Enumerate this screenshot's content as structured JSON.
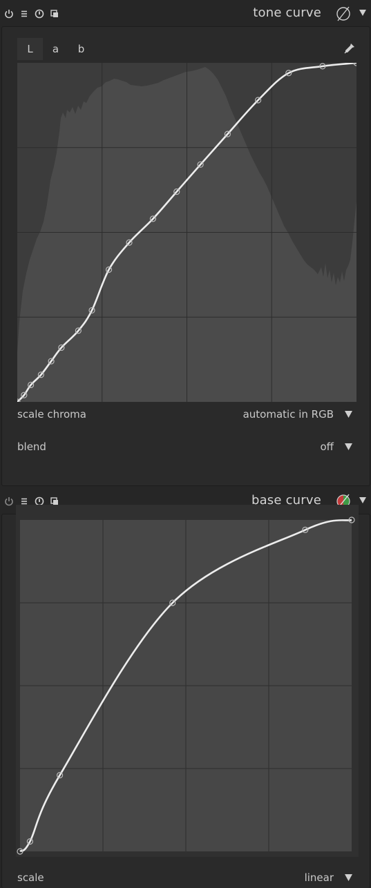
{
  "tone_curve": {
    "title": "tone curve",
    "header_icons": [
      "power-icon",
      "menu-icon",
      "reset-icon",
      "duplicate-icon"
    ],
    "preset_icon": "colorpicker-off-icon",
    "tabs": [
      {
        "label": "L",
        "active": true
      },
      {
        "label": "a",
        "active": false
      },
      {
        "label": "b",
        "active": false
      }
    ],
    "picker_icon": "eyedropper-icon",
    "scale_chroma": {
      "label": "scale chroma",
      "value": "automatic in RGB"
    },
    "blend": {
      "label": "blend",
      "value": "off"
    },
    "curve_nodes": [
      [
        0.0,
        0.0
      ],
      [
        0.02,
        0.02
      ],
      [
        0.04,
        0.05
      ],
      [
        0.07,
        0.08
      ],
      [
        0.1,
        0.12
      ],
      [
        0.13,
        0.16
      ],
      [
        0.18,
        0.21
      ],
      [
        0.22,
        0.27
      ],
      [
        0.27,
        0.39
      ],
      [
        0.33,
        0.47
      ],
      [
        0.4,
        0.54
      ],
      [
        0.47,
        0.62
      ],
      [
        0.54,
        0.7
      ],
      [
        0.62,
        0.79
      ],
      [
        0.71,
        0.89
      ],
      [
        0.8,
        0.97
      ],
      [
        0.9,
        0.99
      ],
      [
        1.0,
        1.0
      ]
    ],
    "colors": {
      "curve": "#ededed",
      "histogram": "#4b4b4b",
      "graph_bg": "#3c3c3c",
      "grid": "#2c2c2c"
    }
  },
  "base_curve": {
    "title": "base curve",
    "header_icons": [
      "power-icon",
      "menu-icon",
      "reset-icon",
      "duplicate-icon"
    ],
    "preset_icon": "colorpicker-on-icon",
    "scale": {
      "label": "scale",
      "value": "linear"
    },
    "curve_nodes": [
      [
        0.0,
        0.0
      ],
      [
        0.03,
        0.03
      ],
      [
        0.12,
        0.23
      ],
      [
        0.46,
        0.75
      ],
      [
        0.86,
        0.97
      ],
      [
        1.0,
        1.0
      ]
    ],
    "colors": {
      "curve": "#ededed",
      "graph_bg": "#474747",
      "grid": "#2e2e2e"
    }
  }
}
